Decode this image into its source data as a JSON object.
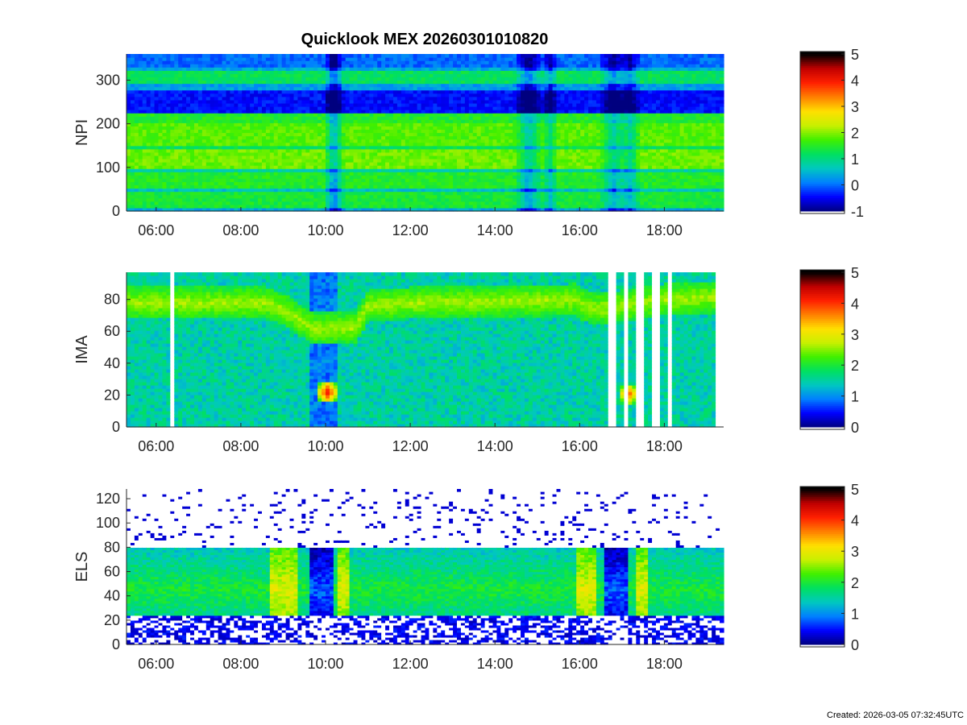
{
  "figure": {
    "title": "Quicklook MEX 20260301010820",
    "created": "Created: 2026-03-05 07:32:45UTC"
  },
  "colors": {
    "colormap": [
      "#00007f",
      "#0000ff",
      "#0080ff",
      "#00c8c0",
      "#00e060",
      "#40f000",
      "#c8f000",
      "#ffe000",
      "#ff8000",
      "#ff2000",
      "#c00000",
      "#000000"
    ],
    "gap": "#ffffff",
    "axis": "#262626"
  },
  "chart_data": [
    {
      "type": "heatmap",
      "ylabel": "NPI",
      "xlabel": "",
      "x_range_hours": [
        5.3,
        19.4
      ],
      "x_ticks": [
        "06:00",
        "08:00",
        "10:00",
        "12:00",
        "14:00",
        "16:00",
        "18:00"
      ],
      "x_tick_hours": [
        6,
        8,
        10,
        12,
        14,
        16,
        18
      ],
      "ylim": [
        0,
        360
      ],
      "y_ticks": [
        0,
        100,
        200,
        300
      ],
      "colorbar": {
        "ticks": [
          -1,
          0,
          1,
          2,
          3,
          4,
          5
        ],
        "range": [
          -1,
          5
        ]
      },
      "bands": [
        {
          "y": [
            0,
            10
          ],
          "level": 0.4
        },
        {
          "y": [
            10,
            45
          ],
          "level": 1.4
        },
        {
          "y": [
            45,
            55
          ],
          "level": 0.6
        },
        {
          "y": [
            55,
            90
          ],
          "level": 1.5
        },
        {
          "y": [
            90,
            100
          ],
          "level": 0.8
        },
        {
          "y": [
            100,
            140
          ],
          "level": 1.9
        },
        {
          "y": [
            140,
            150
          ],
          "level": 1.2
        },
        {
          "y": [
            150,
            200
          ],
          "level": 1.8
        },
        {
          "y": [
            200,
            225
          ],
          "level": 1.5
        },
        {
          "y": [
            225,
            280
          ],
          "level": -0.4
        },
        {
          "y": [
            280,
            290
          ],
          "level": 0.3
        },
        {
          "y": [
            290,
            320
          ],
          "level": 1.2
        },
        {
          "y": [
            320,
            330
          ],
          "level": 0.4
        },
        {
          "y": [
            330,
            360
          ],
          "level": 0.0
        }
      ],
      "dips": [
        {
          "hour": 10.2,
          "width": 0.25,
          "depth": 1.3
        },
        {
          "hour": 14.8,
          "width": 0.35,
          "depth": 1.1
        },
        {
          "hour": 15.3,
          "width": 0.2,
          "depth": 0.8
        },
        {
          "hour": 16.8,
          "width": 0.35,
          "depth": 1.0
        },
        {
          "hour": 17.2,
          "width": 0.25,
          "depth": 0.9
        }
      ],
      "gaps_hours": []
    },
    {
      "type": "heatmap",
      "ylabel": "IMA",
      "xlabel": "",
      "x_range_hours": [
        5.3,
        19.4
      ],
      "x_ticks": [
        "06:00",
        "08:00",
        "10:00",
        "12:00",
        "14:00",
        "16:00",
        "18:00"
      ],
      "x_tick_hours": [
        6,
        8,
        10,
        12,
        14,
        16,
        18
      ],
      "ylim": [
        0,
        97
      ],
      "y_ticks": [
        0,
        20,
        40,
        60,
        80
      ],
      "colorbar": {
        "ticks": [
          0,
          1,
          2,
          3,
          4,
          5
        ],
        "range": [
          0,
          5
        ]
      },
      "background_level": 1.5,
      "band_center_track": [
        [
          5.3,
          78
        ],
        [
          8.6,
          78
        ],
        [
          9.0,
          74
        ],
        [
          9.7,
          62
        ],
        [
          10.7,
          62
        ],
        [
          11.0,
          76
        ],
        [
          12.0,
          78
        ],
        [
          15.9,
          80
        ],
        [
          16.3,
          74
        ],
        [
          17.0,
          76
        ],
        [
          18.0,
          80
        ],
        [
          19.4,
          82
        ]
      ],
      "band_level": 2.6,
      "hotspots": [
        {
          "hour": 10.05,
          "y": 22,
          "level": 4.3
        },
        {
          "hour": 17.15,
          "y": 21,
          "level": 4.0
        }
      ],
      "low_regions_hours": [
        [
          9.65,
          10.3
        ]
      ],
      "gaps_hours": [
        [
          6.3,
          6.42
        ],
        [
          16.67,
          16.86
        ],
        [
          17.09,
          17.13
        ],
        [
          17.34,
          17.53
        ],
        [
          17.72,
          17.85
        ],
        [
          18.1,
          18.14
        ],
        [
          19.2,
          19.4
        ]
      ]
    },
    {
      "type": "heatmap",
      "ylabel": "ELS",
      "xlabel": "",
      "x_range_hours": [
        5.3,
        19.4
      ],
      "x_ticks": [
        "06:00",
        "08:00",
        "10:00",
        "12:00",
        "14:00",
        "16:00",
        "18:00"
      ],
      "x_tick_hours": [
        6,
        8,
        10,
        12,
        14,
        16,
        18
      ],
      "ylim": [
        0,
        128
      ],
      "y_ticks": [
        0,
        20,
        40,
        60,
        80,
        100,
        120
      ],
      "colorbar": {
        "ticks": [
          0,
          1,
          2,
          3,
          4,
          5
        ],
        "range": [
          0,
          5
        ]
      },
      "core_range": [
        25,
        80
      ],
      "core_peak_y": 45,
      "core_level": 1.5,
      "bright_regions_hours": [
        [
          8.7,
          9.3
        ],
        [
          10.3,
          10.6
        ],
        [
          15.9,
          16.4
        ],
        [
          17.3,
          17.6
        ]
      ],
      "depleted_regions_hours": [
        [
          9.6,
          10.2
        ],
        [
          16.6,
          17.1
        ]
      ],
      "gaps_hours": []
    }
  ]
}
